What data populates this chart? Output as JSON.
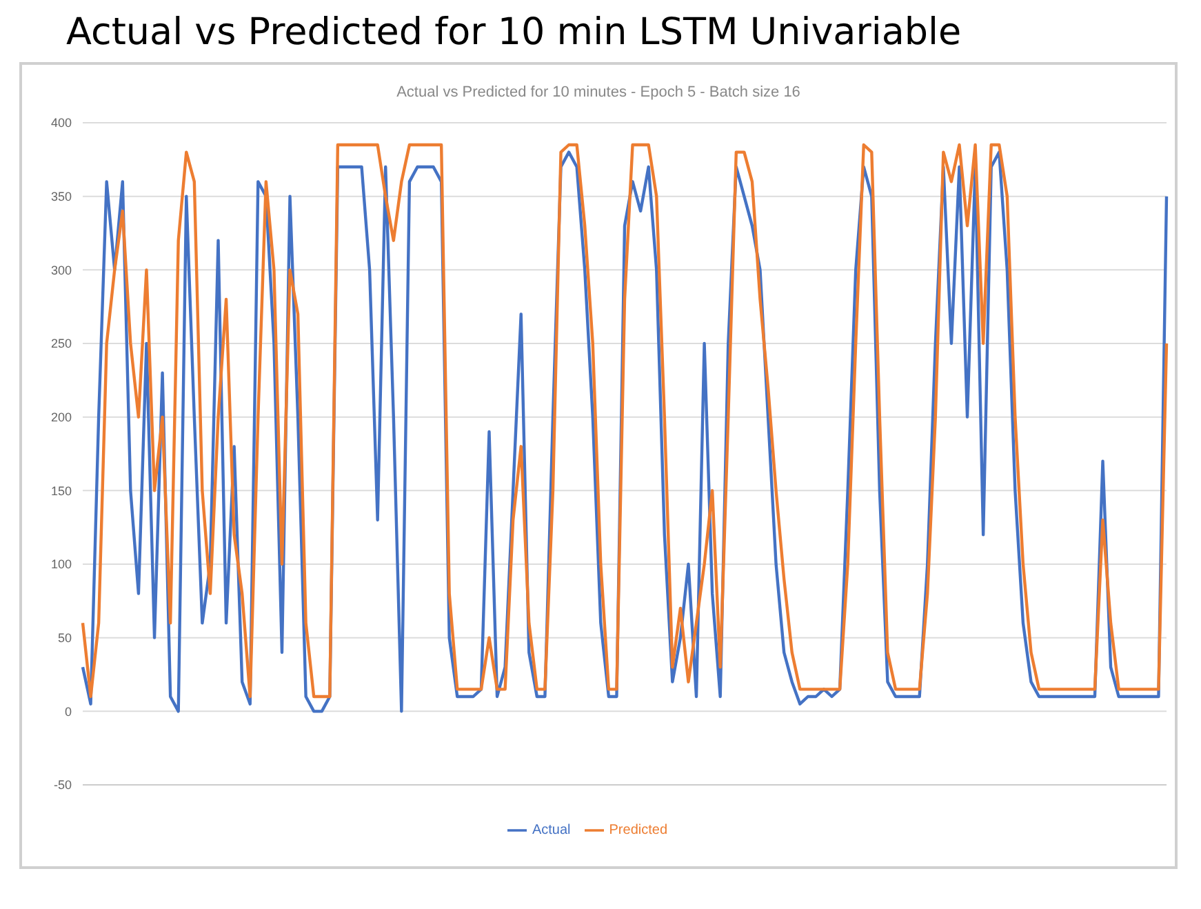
{
  "chart_data": {
    "type": "line",
    "title": "Actual vs Predicted for 10 min LSTM Univariable",
    "subtitle": "Actual vs Predicted for 10 minutes - Epoch 5 - Batch size 16",
    "categories": [
      null,
      null,
      null,
      null,
      null,
      null,
      null,
      null,
      null,
      null,
      null,
      null,
      null,
      null,
      null,
      null,
      null,
      null,
      null,
      null,
      null,
      null,
      null,
      null,
      null,
      null,
      null,
      null,
      null,
      null,
      null,
      null,
      null,
      null,
      null,
      null,
      null,
      null,
      null,
      null,
      null,
      null,
      null,
      null,
      null,
      null,
      null,
      null,
      null,
      null,
      null,
      null,
      null,
      null,
      null,
      null,
      null,
      null,
      null,
      null,
      null,
      null,
      null,
      null,
      null,
      null,
      null,
      null,
      null,
      null,
      null,
      null,
      null,
      null,
      null,
      null,
      null,
      null,
      null,
      null,
      null,
      null,
      null,
      null,
      null,
      null,
      null,
      null,
      null,
      null,
      null,
      null,
      null,
      null,
      null,
      null,
      null,
      null,
      null,
      null,
      null,
      null,
      null,
      null,
      null,
      null,
      null,
      null,
      null,
      null,
      null,
      null,
      null,
      null,
      null,
      null,
      null,
      null,
      null,
      null,
      null,
      null,
      null,
      null,
      null,
      null,
      null,
      null,
      null,
      null,
      null,
      null,
      null,
      null,
      null,
      null,
      null
    ],
    "series": [
      {
        "name": "Actual",
        "color": "#4472c4",
        "values": [
          30,
          5,
          200,
          360,
          300,
          360,
          150,
          80,
          250,
          50,
          230,
          10,
          0,
          350,
          200,
          60,
          100,
          320,
          60,
          180,
          20,
          5,
          360,
          350,
          250,
          40,
          350,
          200,
          10,
          0,
          0,
          10,
          370,
          370,
          370,
          370,
          300,
          130,
          370,
          200,
          0,
          360,
          370,
          370,
          370,
          360,
          50,
          10,
          10,
          10,
          15,
          190,
          10,
          30,
          150,
          270,
          40,
          10,
          10,
          200,
          370,
          380,
          370,
          300,
          200,
          60,
          10,
          10,
          330,
          360,
          340,
          370,
          300,
          120,
          20,
          50,
          100,
          10,
          250,
          80,
          10,
          250,
          370,
          350,
          330,
          300,
          200,
          100,
          40,
          20,
          5,
          10,
          10,
          15,
          10,
          15,
          150,
          300,
          370,
          350,
          150,
          20,
          10,
          10,
          10,
          10,
          100,
          250,
          370,
          250,
          370,
          200,
          370,
          120,
          370,
          380,
          300,
          150,
          60,
          20,
          10,
          10,
          10,
          10,
          10,
          10,
          10,
          10,
          170,
          30,
          10,
          10,
          10,
          10,
          10,
          10,
          350
        ]
      },
      {
        "name": "Predicted",
        "color": "#ed7d31",
        "values": [
          60,
          10,
          60,
          250,
          300,
          340,
          250,
          200,
          300,
          150,
          200,
          60,
          320,
          380,
          360,
          150,
          80,
          200,
          280,
          120,
          80,
          10,
          200,
          360,
          300,
          100,
          300,
          270,
          60,
          10,
          10,
          10,
          385,
          385,
          385,
          385,
          385,
          385,
          350,
          320,
          360,
          385,
          385,
          385,
          385,
          385,
          80,
          15,
          15,
          15,
          15,
          50,
          15,
          15,
          130,
          180,
          60,
          15,
          15,
          150,
          380,
          385,
          385,
          330,
          250,
          100,
          15,
          15,
          280,
          385,
          385,
          385,
          350,
          200,
          30,
          70,
          20,
          60,
          100,
          150,
          30,
          200,
          380,
          380,
          360,
          280,
          220,
          150,
          90,
          40,
          15,
          15,
          15,
          15,
          15,
          15,
          100,
          250,
          385,
          380,
          200,
          40,
          15,
          15,
          15,
          15,
          80,
          200,
          380,
          360,
          385,
          330,
          385,
          250,
          385,
          385,
          350,
          200,
          100,
          40,
          15,
          15,
          15,
          15,
          15,
          15,
          15,
          15,
          130,
          60,
          15,
          15,
          15,
          15,
          15,
          15,
          250
        ]
      }
    ],
    "ylim": [
      -50,
      400
    ],
    "yticks": [
      -50,
      0,
      50,
      100,
      150,
      200,
      250,
      300,
      350,
      400
    ],
    "grid": "y",
    "legend": "bottom",
    "marker": "none",
    "line_style": "solid"
  }
}
